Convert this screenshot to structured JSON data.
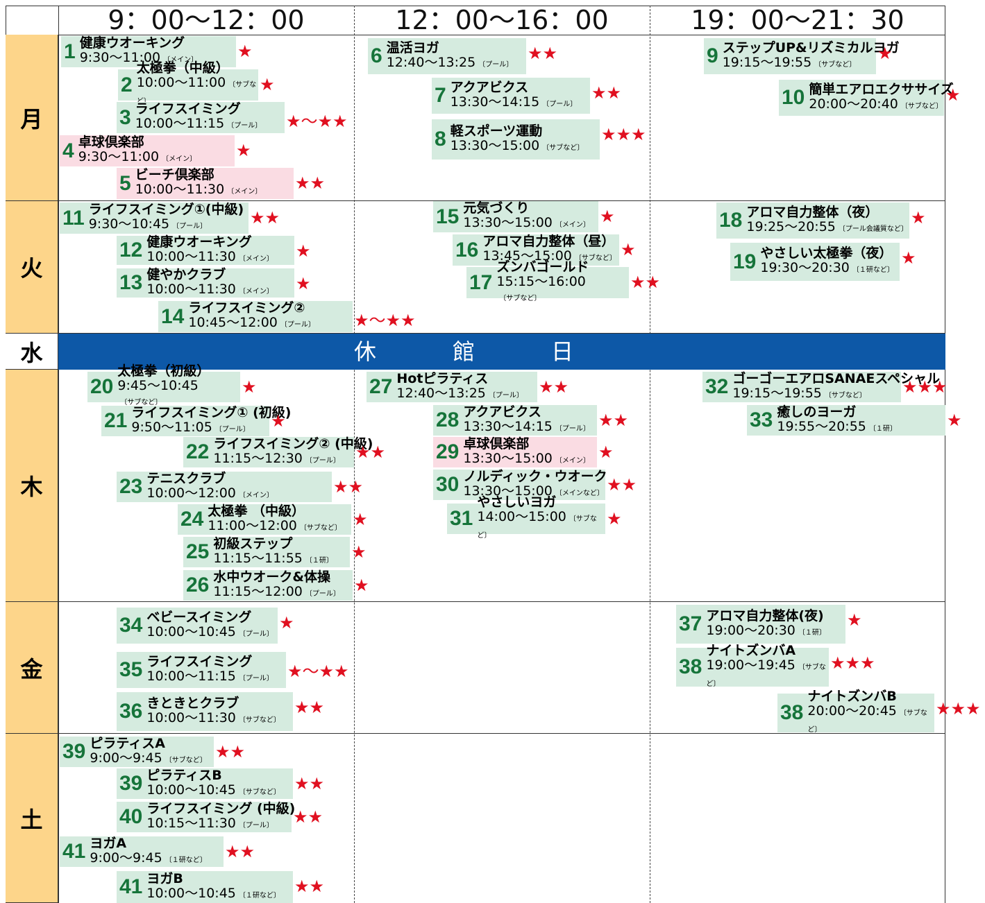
{
  "header": {
    "columns": [
      "9：00〜12：00",
      "12：00〜16：00",
      "19：00〜21：30"
    ]
  },
  "days": [
    {
      "label": "月",
      "classes": [
        {
          "num": "1",
          "name": "健康ウオーキング",
          "time": "9:30〜11:00",
          "place": "〔メイン〕",
          "stars": "★"
        },
        {
          "num": "2",
          "name": "太極拳（中級）",
          "time": "10:00〜11:00",
          "place": "〔サブなど〕",
          "stars": "★"
        },
        {
          "num": "3",
          "name": "ライフスイミング",
          "time": "10:00〜11:15",
          "place": "〔プール〕",
          "stars": "★〜★★"
        },
        {
          "num": "4",
          "name": "卓球倶楽部",
          "time": "9:30〜11:00",
          "place": "〔メイン〕",
          "stars": "★"
        },
        {
          "num": "5",
          "name": "ビーチ倶楽部",
          "time": "10:00〜11:30",
          "place": "〔メイン〕",
          "stars": "★★"
        },
        {
          "num": "6",
          "name": "温活ヨガ",
          "time": "12:40〜13:25",
          "place": "〔プール〕",
          "stars": "★★"
        },
        {
          "num": "7",
          "name": "アクアビクス",
          "time": "13:30〜14:15",
          "place": "〔プール〕",
          "stars": "★★"
        },
        {
          "num": "8",
          "name": "軽スポーツ運動",
          "time": "13:30〜15:00",
          "place": "〔サブなど〕",
          "stars": "★★★"
        },
        {
          "num": "9",
          "name": "ステップUP&リズミカルヨガ",
          "time": "19:15〜19:55",
          "place": "〔サブなど〕",
          "stars": "★"
        },
        {
          "num": "10",
          "name": "簡単エアロエクササイズ",
          "time": "20:00〜20:40",
          "place": "〔サブなど〕",
          "stars": "★"
        }
      ]
    },
    {
      "label": "火",
      "classes": [
        {
          "num": "11",
          "name": "ライフスイミング①(中級)",
          "time": "9:30〜10:45",
          "place": "〔プール〕",
          "stars": "★★"
        },
        {
          "num": "12",
          "name": "健康ウオーキング",
          "time": "10:00〜11:30",
          "place": "〔メイン〕",
          "stars": "★"
        },
        {
          "num": "13",
          "name": "健やかクラブ",
          "time": "10:00〜11:30",
          "place": "〔メイン〕",
          "stars": "★"
        },
        {
          "num": "14",
          "name": "ライフスイミング②",
          "time": "10:45〜12:00",
          "place": "〔プール〕",
          "stars": "★〜★★"
        },
        {
          "num": "15",
          "name": "元気づくり",
          "time": "13:30〜15:00",
          "place": "〔メイン〕",
          "stars": "★"
        },
        {
          "num": "16",
          "name": "アロマ自力整体（昼）",
          "time": "13:45〜15:00",
          "place": "〔サブなど〕",
          "stars": "★"
        },
        {
          "num": "17",
          "name": "ズンバゴールド",
          "time": "15:15〜16:00",
          "place": "〔サブなど〕",
          "stars": "★★"
        },
        {
          "num": "18",
          "name": "アロマ自力整体（夜）",
          "time": "19:25〜20:55",
          "place": "〔プール会議質など〕",
          "stars": "★"
        },
        {
          "num": "19",
          "name": "やさしい太極拳（夜）",
          "time": "19:30〜20:30",
          "place": "〔１研など〕",
          "stars": "★"
        }
      ]
    },
    {
      "label": "水",
      "closed": "休館日",
      "classes": []
    },
    {
      "label": "木",
      "classes": [
        {
          "num": "20",
          "name": "太極拳（初級）",
          "time": "9:45〜10:45",
          "place": "〔サブなど〕",
          "stars": "★"
        },
        {
          "num": "21",
          "name": "ライフスイミング① (初級)",
          "time": "9:50〜11:05",
          "place": "〔プール〕",
          "stars": "★"
        },
        {
          "num": "22",
          "name": "ライフスイミング② (中級)",
          "time": "11:15〜12:30",
          "place": "〔プール〕",
          "stars": "★★"
        },
        {
          "num": "23",
          "name": "テニスクラブ",
          "time": "10:00〜12:00",
          "place": "〔メイン〕",
          "stars": "★★"
        },
        {
          "num": "24",
          "name": "太極拳 （中級）",
          "time": "11:00〜12:00",
          "place": "〔サブなど〕",
          "stars": "★"
        },
        {
          "num": "25",
          "name": "初級ステップ",
          "time": "11:15〜11:55",
          "place": "〔１研〕",
          "stars": "★"
        },
        {
          "num": "26",
          "name": "水中ウオーク&体操",
          "time": "11:15〜12:00",
          "place": "〔プール〕",
          "stars": "★"
        },
        {
          "num": "27",
          "name": "Hotピラティス",
          "time": "12:40〜13:25",
          "place": "〔プール〕",
          "stars": "★★"
        },
        {
          "num": "28",
          "name": "アクアビクス",
          "time": "13:30〜14:15",
          "place": "〔プール〕",
          "stars": "★★"
        },
        {
          "num": "29",
          "name": "卓球倶楽部",
          "time": "13:30〜15:00",
          "place": "〔メイン〕",
          "stars": "★"
        },
        {
          "num": "30",
          "name": "ノルディック・ウオーク",
          "time": "13:30〜15:00",
          "place": "〔メインなど〕",
          "stars": "★★"
        },
        {
          "num": "31",
          "name": "やさしいヨガ",
          "time": "14:00〜15:00",
          "place": "〔サブなど〕",
          "stars": "★"
        },
        {
          "num": "32",
          "name": "ゴーゴーエアロSANAEスペシャル",
          "time": "19:15〜19:55",
          "place": "〔サブなど〕",
          "stars": "★★★"
        },
        {
          "num": "33",
          "name": "癒しのヨーガ",
          "time": "19:55〜20:55",
          "place": "〔１研〕",
          "stars": "★"
        }
      ]
    },
    {
      "label": "金",
      "classes": [
        {
          "num": "34",
          "name": "ベビースイミング",
          "time": "10:00〜10:45",
          "place": "〔プール〕",
          "stars": "★"
        },
        {
          "num": "35",
          "name": "ライフスイミング",
          "time": "10:00〜11:15",
          "place": "〔プール〕",
          "stars": "★〜★★"
        },
        {
          "num": "36",
          "name": "きときとクラブ",
          "time": "10:00〜11:30",
          "place": "〔サブなど〕",
          "stars": "★★"
        },
        {
          "num": "37",
          "name": "アロマ自力整体(夜)",
          "time": "19:00〜20:30",
          "place": "〔１研〕",
          "stars": "★"
        },
        {
          "num": "38",
          "name": "ナイトズンバA",
          "time": "19:00〜19:45",
          "place": "〔サブなど〕",
          "stars": "★★★"
        },
        {
          "num": "38",
          "name": "ナイトズンバB",
          "time": "20:00〜20:45",
          "place": "〔サブなど〕",
          "stars": "★★★"
        }
      ]
    },
    {
      "label": "土",
      "classes": [
        {
          "num": "39",
          "name": "ピラティスA",
          "time": "9:00〜9:45",
          "place": "〔サブなど〕",
          "stars": "★★"
        },
        {
          "num": "39",
          "name": "ピラティスB",
          "time": "10:00〜10:45",
          "place": "〔サブなど〕",
          "stars": "★★"
        },
        {
          "num": "40",
          "name": "ライフスイミング (中級)",
          "time": "10:15〜11:30",
          "place": "〔プール〕",
          "stars": "★★"
        },
        {
          "num": "41",
          "name": "ヨガA",
          "time": "9:00〜9:45",
          "place": "〔１研など〕",
          "stars": "★★"
        },
        {
          "num": "41",
          "name": "ヨガB",
          "time": "10:00〜10:45",
          "place": "〔１研など〕",
          "stars": "★★"
        }
      ]
    }
  ]
}
